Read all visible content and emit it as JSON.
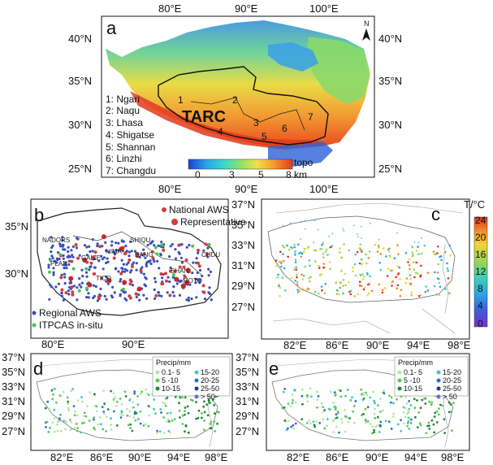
{
  "panel_a": {
    "label": "a",
    "lon_ticks": [
      "80°E",
      "90°E",
      "100°E"
    ],
    "lat_ticks": [
      "40°N",
      "35°N",
      "30°N",
      "25°N"
    ],
    "regions": [
      "1: Ngari",
      "2: Naqu",
      "3: Lhasa",
      "4: Shigatse",
      "5: Shannan",
      "6: Linzhi",
      "7: Changdu"
    ],
    "region_numbers": [
      "1",
      "2",
      "3",
      "4",
      "5",
      "6",
      "7"
    ],
    "tarc_label": "TARC",
    "north_label": "N",
    "colorbar": {
      "title": "topo",
      "tick_labels": [
        "0",
        "3",
        "5",
        "8 km"
      ],
      "colors": [
        "#1f3fd6",
        "#2aa6e8",
        "#3fd8c8",
        "#8fe06a",
        "#f0e04a",
        "#f59a30",
        "#e43a1c"
      ]
    }
  },
  "panel_b": {
    "label": "b",
    "lon_ticks": [
      "80°E",
      "90°E"
    ],
    "lat_ticks": [
      "35°N",
      "30°N"
    ],
    "legend_top": [
      {
        "label": "National AWS",
        "color": "#d63c3c"
      },
      {
        "label": "Representative",
        "color": "#d63c3c"
      }
    ],
    "legend_bottom": [
      {
        "label": "Regional AWS",
        "color": "#3a4fb8"
      },
      {
        "label": "ITPCAS in-situ",
        "color": "#4cc34c"
      }
    ],
    "station_names": [
      "NADORS",
      "SHIQU",
      "NIMA",
      "GAIZE",
      "BANG",
      "PLAN",
      "CHDU",
      "TICO",
      "MOTO",
      "SHAN"
    ]
  },
  "panel_c": {
    "label": "c",
    "lon_ticks": [
      "82°E",
      "86°E",
      "90°E",
      "94°E",
      "98°E"
    ],
    "lat_ticks": [
      "37°N",
      "35°N",
      "33°N",
      "31°N",
      "29°N",
      "27°N"
    ],
    "colorbar": {
      "title": "T/°C",
      "tick_labels": [
        "24",
        "20",
        "16",
        "12",
        "8",
        "4",
        "0"
      ],
      "colors": [
        "#e0301e",
        "#f08a2a",
        "#f3d23a",
        "#9bd84e",
        "#3fcfb8",
        "#2aa6e8",
        "#3a5fd8",
        "#7a2fd0"
      ]
    }
  },
  "panel_d": {
    "label": "d",
    "lon_ticks": [
      "82°E",
      "86°E",
      "90°E",
      "94°E",
      "98°E"
    ],
    "lat_ticks": [
      "37°N",
      "35°N",
      "33°N",
      "31°N",
      "29°N",
      "27°N"
    ],
    "legend_title": "Precip/mm",
    "legend_items": [
      {
        "label": "0.1- 5",
        "color": "#b8e6a6"
      },
      {
        "label": "5 -10",
        "color": "#5cc85a"
      },
      {
        "label": "10-15",
        "color": "#1f8a2e"
      },
      {
        "label": "15-20",
        "color": "#3ec6c8"
      },
      {
        "label": "20-25",
        "color": "#2a6fd0"
      },
      {
        "label": "25-50",
        "color": "#1c3aa8"
      },
      {
        "label": "> 50",
        "color": "#6a6ad8"
      }
    ]
  },
  "panel_e": {
    "label": "e",
    "lon_ticks": [
      "82°E",
      "86°E",
      "90°E",
      "94°E",
      "98°E"
    ],
    "lat_ticks": [
      "37°N",
      "35°N",
      "33°N",
      "31°N",
      "29°N",
      "27°N"
    ],
    "legend_title": "Precip/mm",
    "legend_items": [
      {
        "label": "0.1- 5",
        "color": "#b8e6a6"
      },
      {
        "label": "5 -10",
        "color": "#5cc85a"
      },
      {
        "label": "10-15",
        "color": "#1f8a2e"
      },
      {
        "label": "15-20",
        "color": "#3ec6c8"
      },
      {
        "label": "20-25",
        "color": "#2a6fd0"
      },
      {
        "label": "25-50",
        "color": "#1c3aa8"
      },
      {
        "label": "> 50",
        "color": "#6a6ad8"
      }
    ]
  }
}
